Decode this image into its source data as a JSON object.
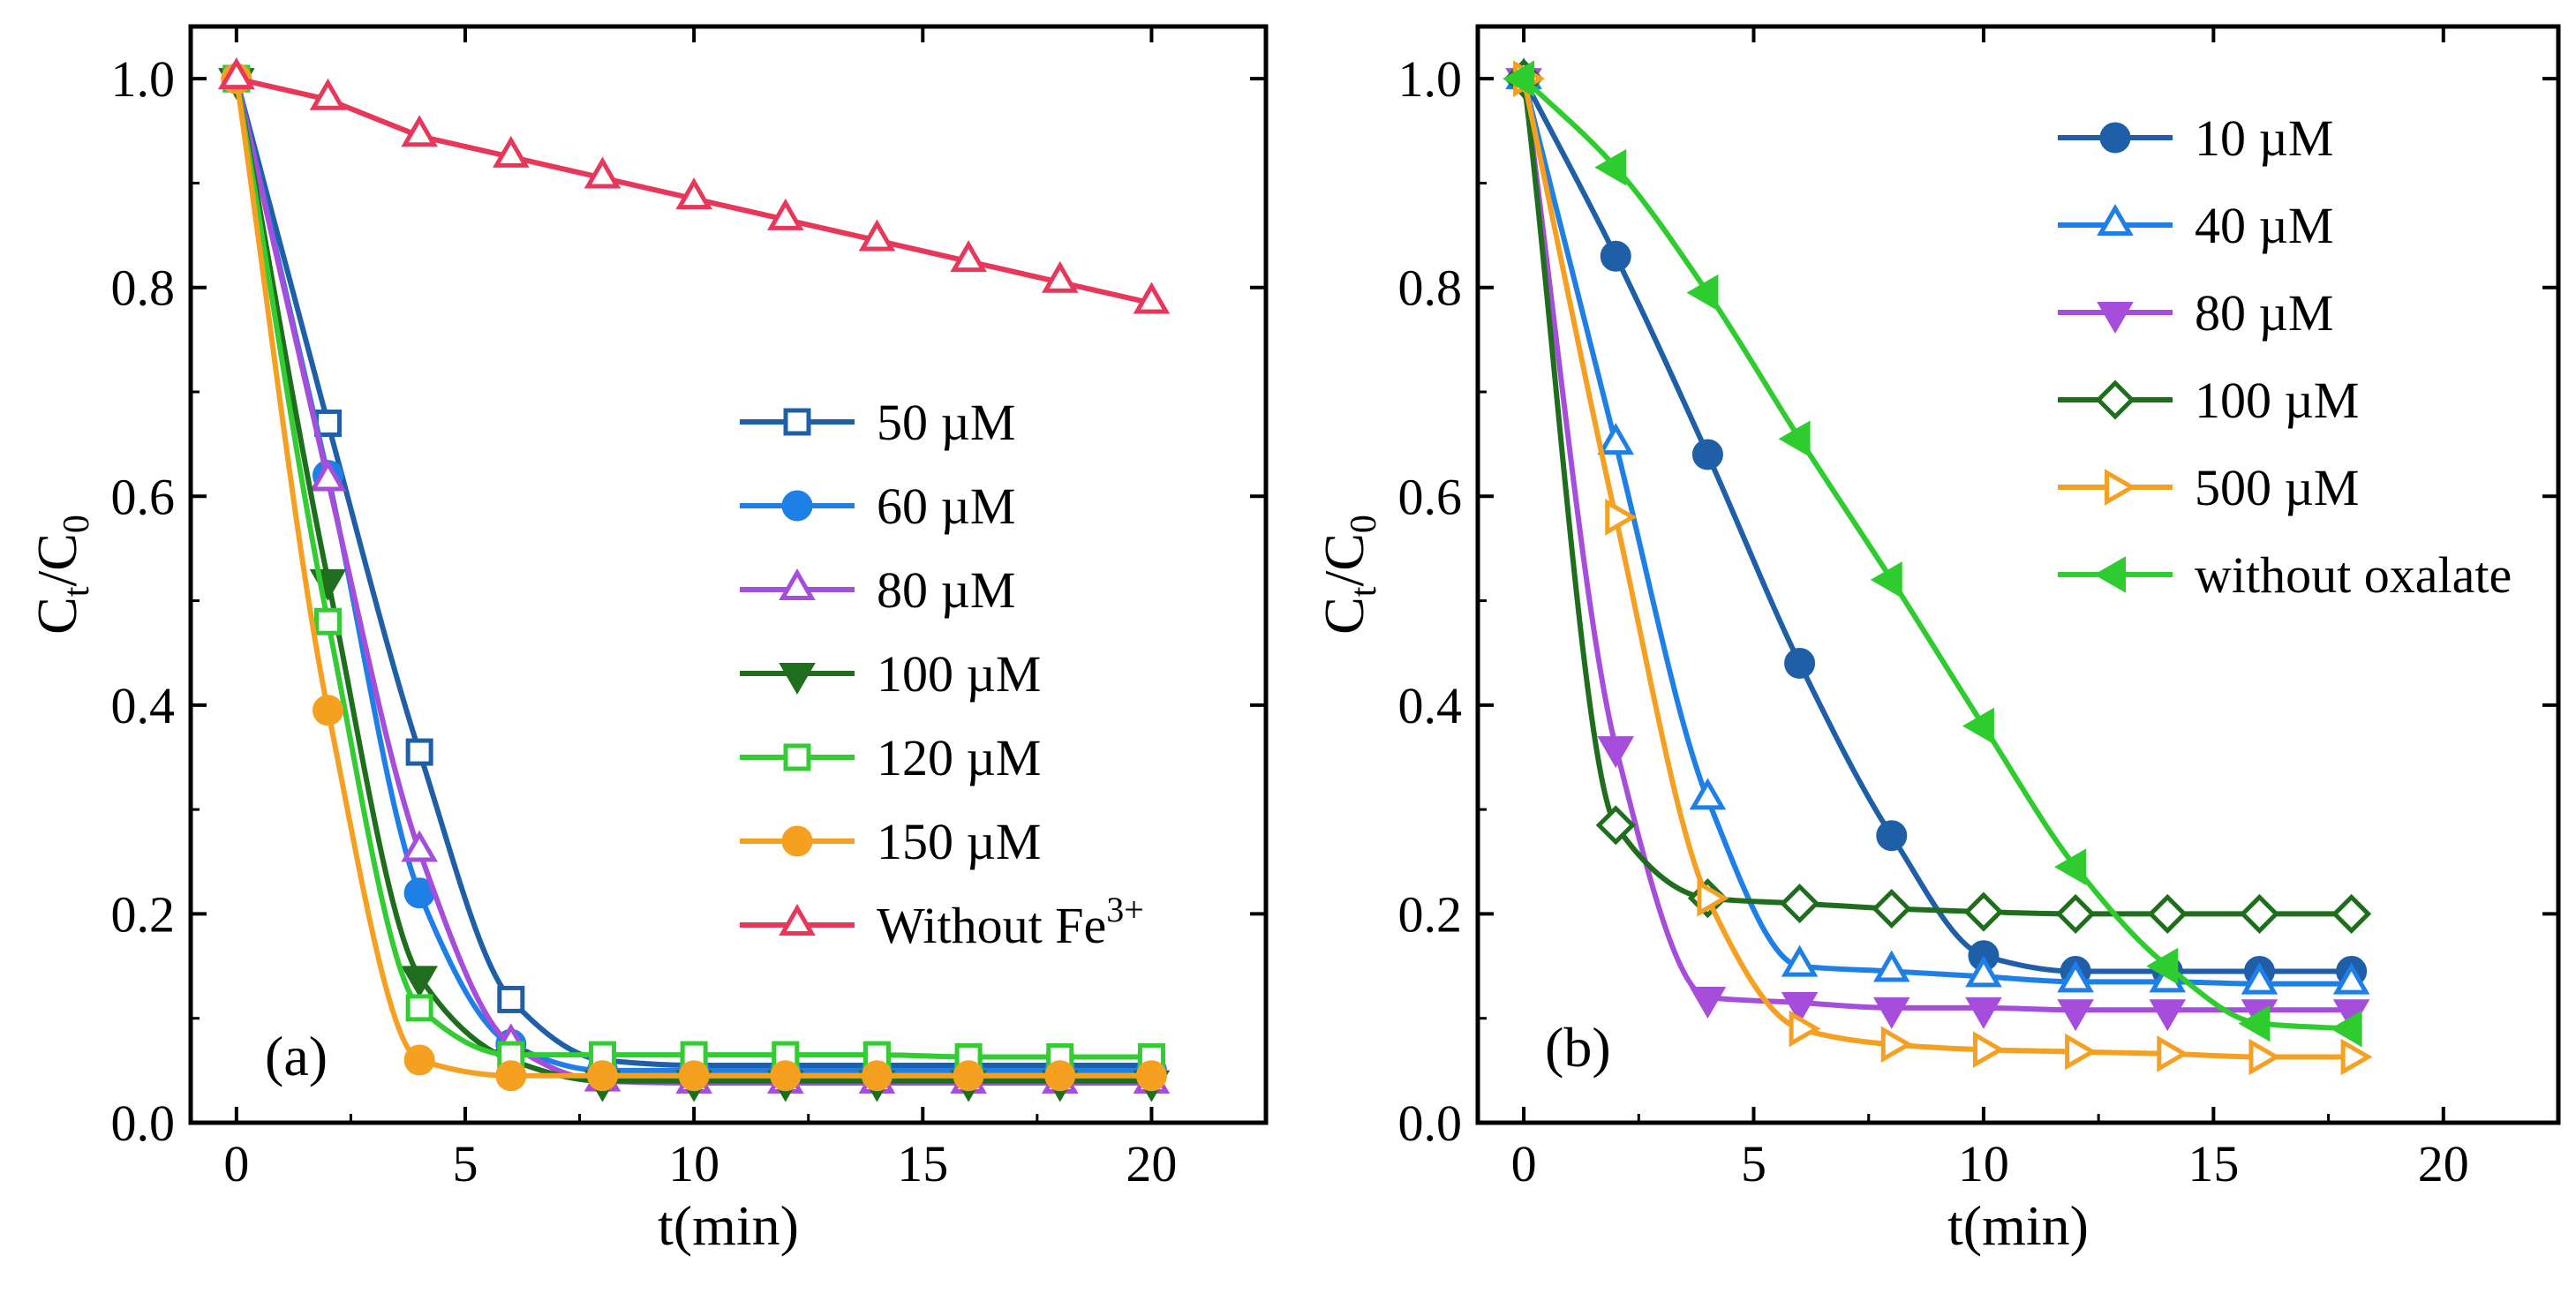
{
  "chart_data": [
    {
      "type": "line",
      "panel_label": "(a)",
      "xlabel": "t(min)",
      "ylabel": "Ct/C0",
      "ylabel_main": "C",
      "ylabel_sub1": "t",
      "ylabel_sep": "/C",
      "ylabel_sub2": "0",
      "xlim": [
        -1,
        22.5
      ],
      "ylim": [
        0,
        1.05
      ],
      "xticks": [
        "0",
        "5",
        "10",
        "15",
        "20"
      ],
      "yticks": [
        "0.0",
        "0.2",
        "0.4",
        "0.6",
        "0.8",
        "1.0"
      ],
      "legend_position": "center-right",
      "series": [
        {
          "name": "50 µM",
          "color": "#1f5fa8",
          "marker": "square",
          "filled": false,
          "connect": "smooth",
          "x": [
            0,
            2,
            4,
            6,
            8,
            10,
            12,
            14,
            16,
            18,
            20
          ],
          "y": [
            1.0,
            0.67,
            0.355,
            0.118,
            0.06,
            0.055,
            0.055,
            0.055,
            0.055,
            0.055,
            0.055
          ]
        },
        {
          "name": "60 µM",
          "color": "#1e7fe6",
          "marker": "circle",
          "filled": true,
          "connect": "smooth",
          "x": [
            0,
            2,
            4,
            6,
            8,
            10,
            12,
            14,
            16,
            18,
            20
          ],
          "y": [
            1.0,
            0.62,
            0.22,
            0.075,
            0.05,
            0.05,
            0.05,
            0.05,
            0.05,
            0.05,
            0.05
          ]
        },
        {
          "name": "80 µM",
          "color": "#a64ddb",
          "marker": "triangle-up",
          "filled": false,
          "connect": "smooth",
          "x": [
            0,
            2,
            4,
            6,
            8,
            10,
            12,
            14,
            16,
            18,
            20
          ],
          "y": [
            1.0,
            0.615,
            0.26,
            0.075,
            0.04,
            0.038,
            0.038,
            0.038,
            0.038,
            0.038,
            0.038
          ]
        },
        {
          "name": "100 µM",
          "color": "#1e6e1e",
          "marker": "triangle-down",
          "filled": true,
          "connect": "smooth",
          "x": [
            0,
            2,
            4,
            6,
            8,
            10,
            12,
            14,
            16,
            18,
            20
          ],
          "y": [
            1.0,
            0.52,
            0.14,
            0.06,
            0.04,
            0.04,
            0.04,
            0.04,
            0.04,
            0.04,
            0.04
          ]
        },
        {
          "name": "120 µM",
          "color": "#33cc33",
          "marker": "square",
          "filled": false,
          "connect": "smooth",
          "x": [
            0,
            2,
            4,
            6,
            8,
            10,
            12,
            14,
            16,
            18,
            20
          ],
          "y": [
            1.0,
            0.48,
            0.11,
            0.065,
            0.065,
            0.065,
            0.065,
            0.065,
            0.063,
            0.063,
            0.063
          ]
        },
        {
          "name": "150 µM",
          "color": "#f5a020",
          "marker": "circle",
          "filled": true,
          "connect": "smooth",
          "x": [
            0,
            2,
            4,
            6,
            8,
            10,
            12,
            14,
            16,
            18,
            20
          ],
          "y": [
            1.0,
            0.395,
            0.06,
            0.045,
            0.045,
            0.045,
            0.045,
            0.045,
            0.045,
            0.045,
            0.045
          ]
        },
        {
          "name": "Without Fe",
          "name_sup": "3+",
          "color": "#e8375a",
          "marker": "triangle-up",
          "filled": false,
          "connect": "linear",
          "x": [
            0,
            2,
            4,
            6,
            8,
            10,
            12,
            14,
            16,
            18,
            20
          ],
          "y": [
            1.0,
            0.98,
            0.945,
            0.925,
            0.905,
            0.885,
            0.865,
            0.845,
            0.825,
            0.805,
            0.785
          ]
        }
      ]
    },
    {
      "type": "line",
      "panel_label": "(b)",
      "xlabel": "t(min)",
      "ylabel": "Ct/C0",
      "ylabel_main": "C",
      "ylabel_sub1": "t",
      "ylabel_sep": "/C",
      "ylabel_sub2": "0",
      "xlim": [
        -1,
        22.5
      ],
      "ylim": [
        0,
        1.05
      ],
      "xticks": [
        "0",
        "5",
        "10",
        "15",
        "20"
      ],
      "yticks": [
        "0.0",
        "0.2",
        "0.4",
        "0.6",
        "0.8",
        "1.0"
      ],
      "legend_position": "top-right",
      "series": [
        {
          "name": "10 µM",
          "color": "#1f5fa8",
          "marker": "circle",
          "filled": true,
          "connect": "smooth",
          "x": [
            0,
            2,
            4,
            6,
            8,
            10,
            12,
            14,
            16,
            18
          ],
          "y": [
            1.0,
            0.83,
            0.64,
            0.44,
            0.275,
            0.16,
            0.145,
            0.145,
            0.145,
            0.145
          ]
        },
        {
          "name": "40 µM",
          "color": "#1e7fe6",
          "marker": "triangle-up",
          "filled": false,
          "connect": "smooth",
          "x": [
            0,
            2,
            4,
            6,
            8,
            10,
            12,
            14,
            16,
            18
          ],
          "y": [
            1.0,
            0.65,
            0.31,
            0.15,
            0.145,
            0.14,
            0.135,
            0.135,
            0.133,
            0.133
          ]
        },
        {
          "name": "80 µM",
          "color": "#a64ddb",
          "marker": "triangle-down",
          "filled": true,
          "connect": "smooth",
          "x": [
            0,
            2,
            4,
            6,
            8,
            10,
            12,
            14,
            16,
            18
          ],
          "y": [
            1.0,
            0.36,
            0.12,
            0.115,
            0.11,
            0.11,
            0.108,
            0.108,
            0.108,
            0.108
          ]
        },
        {
          "name": "100 µM",
          "color": "#1e6e1e",
          "marker": "diamond",
          "filled": false,
          "connect": "smooth",
          "x": [
            0,
            2,
            4,
            6,
            8,
            10,
            12,
            14,
            16,
            18
          ],
          "y": [
            1.0,
            0.285,
            0.215,
            0.21,
            0.205,
            0.202,
            0.2,
            0.2,
            0.2,
            0.2
          ]
        },
        {
          "name": " 500 µM",
          "color": "#f5a020",
          "marker": "triangle-right",
          "filled": false,
          "connect": "smooth",
          "x": [
            0,
            2,
            4,
            6,
            8,
            10,
            12,
            14,
            16,
            18
          ],
          "y": [
            1.0,
            0.58,
            0.215,
            0.09,
            0.075,
            0.07,
            0.068,
            0.066,
            0.063,
            0.063
          ]
        },
        {
          "name": "without oxalate",
          "color": "#2ecc2e",
          "marker": "triangle-left",
          "filled": true,
          "connect": "smooth",
          "x": [
            0,
            2,
            4,
            6,
            8,
            10,
            12,
            14,
            16,
            18
          ],
          "y": [
            1.0,
            0.915,
            0.795,
            0.655,
            0.52,
            0.38,
            0.245,
            0.15,
            0.095,
            0.09
          ]
        }
      ]
    }
  ]
}
